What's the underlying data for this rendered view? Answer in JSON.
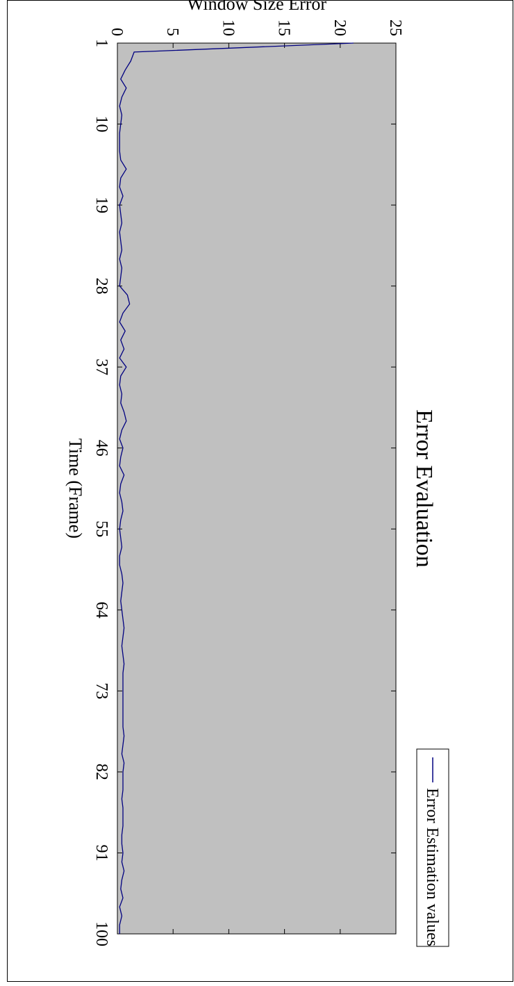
{
  "chart_data": {
    "type": "line",
    "title": "Error Evaluation",
    "xlabel": "Time (Frame)",
    "ylabel": "Window Size Error",
    "xlim": [
      1,
      100
    ],
    "ylim": [
      0,
      25
    ],
    "x_ticks": [
      1,
      10,
      19,
      28,
      37,
      46,
      55,
      64,
      73,
      82,
      91,
      100
    ],
    "y_ticks": [
      0,
      5,
      10,
      15,
      20,
      25
    ],
    "legend_position": "top-right",
    "grid": false,
    "orientation": "rotated 90 degrees clockwise",
    "colors": {
      "plot_background": "#c0c0c0",
      "series_line": "#000080"
    },
    "series": [
      {
        "name": "Error Estimation values",
        "x": [
          1,
          2,
          3,
          4,
          5,
          6,
          7,
          8,
          9,
          10,
          11,
          12,
          13,
          14,
          15,
          16,
          17,
          18,
          19,
          20,
          21,
          22,
          23,
          24,
          25,
          26,
          27,
          28,
          29,
          30,
          31,
          32,
          33,
          34,
          35,
          36,
          37,
          38,
          39,
          40,
          41,
          42,
          43,
          44,
          45,
          46,
          47,
          48,
          49,
          50,
          51,
          52,
          53,
          54,
          55,
          56,
          57,
          58,
          59,
          60,
          61,
          62,
          63,
          64,
          65,
          66,
          67,
          68,
          69,
          70,
          71,
          72,
          73,
          74,
          75,
          76,
          77,
          78,
          79,
          80,
          81,
          82,
          83,
          84,
          85,
          86,
          87,
          88,
          89,
          90,
          91,
          92,
          93,
          94,
          95,
          96,
          97,
          98,
          99,
          100
        ],
        "values": [
          21.2,
          1.5,
          1.2,
          0.7,
          0.3,
          0.8,
          0.4,
          0.2,
          0.4,
          0.3,
          0.2,
          0.2,
          0.2,
          0.3,
          0.8,
          0.3,
          0.2,
          0.5,
          0.2,
          0.3,
          0.4,
          0.2,
          0.3,
          0.4,
          0.2,
          0.4,
          0.3,
          0.2,
          0.9,
          1.1,
          0.5,
          0.2,
          0.7,
          0.3,
          0.6,
          0.2,
          0.8,
          0.3,
          0.2,
          0.4,
          0.3,
          0.6,
          0.8,
          0.4,
          0.2,
          0.5,
          0.3,
          0.2,
          0.6,
          0.3,
          0.2,
          0.4,
          0.5,
          0.3,
          0.2,
          0.3,
          0.4,
          0.2,
          0.2,
          0.4,
          0.5,
          0.4,
          0.3,
          0.4,
          0.5,
          0.6,
          0.5,
          0.4,
          0.5,
          0.6,
          0.5,
          0.5,
          0.5,
          0.5,
          0.5,
          0.5,
          0.5,
          0.6,
          0.5,
          0.4,
          0.6,
          0.5,
          0.5,
          0.5,
          0.4,
          0.5,
          0.5,
          0.5,
          0.4,
          0.4,
          0.5,
          0.4,
          0.6,
          0.4,
          0.3,
          0.5,
          0.2,
          0.4,
          0.2,
          0.2
        ]
      }
    ]
  }
}
